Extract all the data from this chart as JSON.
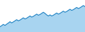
{
  "title": "",
  "line_color": "#1c7fc0",
  "fill_color": "#a8d4f0",
  "background_color": "#ffffff",
  "figsize": [
    1.2,
    0.45
  ],
  "dpi": 100,
  "values": [
    72.0,
    73.5,
    75.2,
    73.8,
    75.5,
    77.0,
    78.8,
    77.2,
    78.5,
    80.0,
    81.5,
    80.0,
    81.0,
    82.5,
    84.0,
    82.5,
    83.5,
    85.0,
    86.5,
    85.0,
    86.0,
    87.5,
    89.0,
    87.5,
    88.5,
    90.0,
    91.5,
    90.0,
    88.0,
    86.5,
    88.0,
    86.5,
    87.5,
    89.0,
    90.5,
    89.0,
    90.0,
    91.5,
    93.0,
    91.5,
    92.5,
    94.0,
    95.5,
    94.0,
    95.0,
    96.5,
    98.0,
    96.5,
    97.5,
    99.0,
    100.5,
    99.0
  ],
  "ylim_min": 65,
  "ylim_max": 108,
  "fill_baseline": 65,
  "linewidth": 0.7
}
